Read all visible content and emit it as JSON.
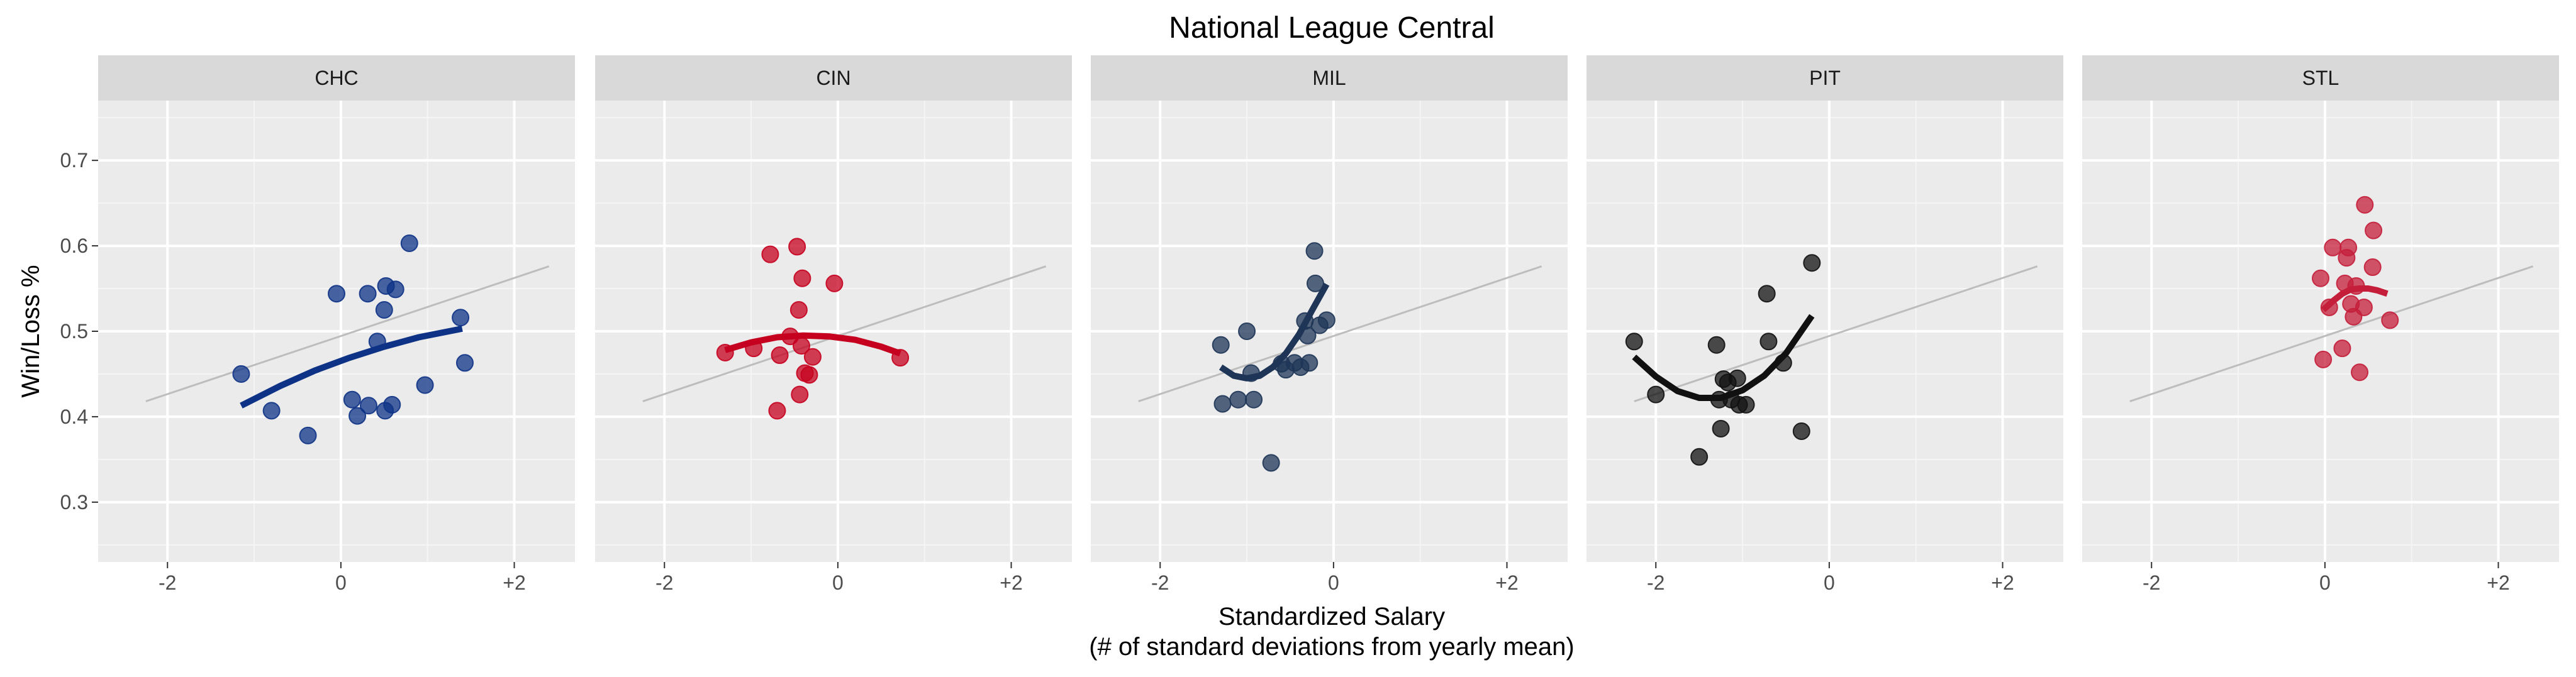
{
  "chart_data": {
    "type": "scatter",
    "title": "National League Central",
    "xlabel": "Standardized Salary",
    "xlabel_line2": "(# of standard deviations from yearly mean)",
    "ylabel": "Win/Loss %",
    "xlim": [
      -2.8,
      2.7
    ],
    "ylim": [
      0.23,
      0.77
    ],
    "x_ticks": [
      -2,
      0,
      2
    ],
    "x_tick_labels": [
      "-2",
      "0",
      "+2"
    ],
    "y_ticks": [
      0.3,
      0.4,
      0.5,
      0.6,
      0.7
    ],
    "y_tick_labels": [
      "0.3",
      "0.4",
      "0.5",
      "0.6",
      "0.7"
    ],
    "grid": true,
    "reference_line": {
      "x": [
        -2.25,
        2.4
      ],
      "y": [
        0.418,
        0.576
      ],
      "color": "#bdbdbd"
    },
    "facets": [
      {
        "label": "CHC",
        "color": "#0e3386",
        "points": [
          {
            "x": -1.15,
            "y": 0.45
          },
          {
            "x": -0.8,
            "y": 0.407
          },
          {
            "x": -0.38,
            "y": 0.378
          },
          {
            "x": -0.05,
            "y": 0.544
          },
          {
            "x": 0.13,
            "y": 0.42
          },
          {
            "x": 0.19,
            "y": 0.401
          },
          {
            "x": 0.31,
            "y": 0.544
          },
          {
            "x": 0.32,
            "y": 0.413
          },
          {
            "x": 0.42,
            "y": 0.488
          },
          {
            "x": 0.5,
            "y": 0.525
          },
          {
            "x": 0.51,
            "y": 0.407
          },
          {
            "x": 0.52,
            "y": 0.553
          },
          {
            "x": 0.59,
            "y": 0.414
          },
          {
            "x": 0.63,
            "y": 0.549
          },
          {
            "x": 0.79,
            "y": 0.603
          },
          {
            "x": 0.97,
            "y": 0.437
          },
          {
            "x": 1.38,
            "y": 0.516
          },
          {
            "x": 1.43,
            "y": 0.463
          }
        ],
        "fit": {
          "x": [
            -1.15,
            -0.7,
            -0.3,
            0.1,
            0.5,
            0.9,
            1.4
          ],
          "y": [
            0.413,
            0.436,
            0.454,
            0.469,
            0.482,
            0.493,
            0.503
          ]
        }
      },
      {
        "label": "CIN",
        "color": "#c6011f",
        "points": [
          {
            "x": -1.3,
            "y": 0.475
          },
          {
            "x": -0.97,
            "y": 0.48
          },
          {
            "x": -0.78,
            "y": 0.59
          },
          {
            "x": -0.7,
            "y": 0.407
          },
          {
            "x": -0.67,
            "y": 0.472
          },
          {
            "x": -0.55,
            "y": 0.494
          },
          {
            "x": -0.47,
            "y": 0.599
          },
          {
            "x": -0.45,
            "y": 0.525
          },
          {
            "x": -0.44,
            "y": 0.426
          },
          {
            "x": -0.42,
            "y": 0.483
          },
          {
            "x": -0.41,
            "y": 0.562
          },
          {
            "x": -0.38,
            "y": 0.451
          },
          {
            "x": -0.33,
            "y": 0.449
          },
          {
            "x": -0.29,
            "y": 0.47
          },
          {
            "x": -0.04,
            "y": 0.556
          },
          {
            "x": 0.72,
            "y": 0.469
          }
        ],
        "fit": {
          "x": [
            -1.3,
            -1.0,
            -0.7,
            -0.4,
            -0.1,
            0.2,
            0.5,
            0.72
          ],
          "y": [
            0.478,
            0.487,
            0.493,
            0.495,
            0.494,
            0.49,
            0.482,
            0.474
          ]
        }
      },
      {
        "label": "MIL",
        "color": "#1e3557",
        "points": [
          {
            "x": -1.3,
            "y": 0.484
          },
          {
            "x": -1.28,
            "y": 0.415
          },
          {
            "x": -1.1,
            "y": 0.42
          },
          {
            "x": -1.0,
            "y": 0.5
          },
          {
            "x": -0.95,
            "y": 0.451
          },
          {
            "x": -0.92,
            "y": 0.42
          },
          {
            "x": -0.72,
            "y": 0.346
          },
          {
            "x": -0.6,
            "y": 0.462
          },
          {
            "x": -0.55,
            "y": 0.455
          },
          {
            "x": -0.45,
            "y": 0.463
          },
          {
            "x": -0.38,
            "y": 0.458
          },
          {
            "x": -0.33,
            "y": 0.512
          },
          {
            "x": -0.3,
            "y": 0.495
          },
          {
            "x": -0.28,
            "y": 0.463
          },
          {
            "x": -0.22,
            "y": 0.594
          },
          {
            "x": -0.21,
            "y": 0.556
          },
          {
            "x": -0.16,
            "y": 0.507
          },
          {
            "x": -0.08,
            "y": 0.513
          }
        ],
        "fit": {
          "x": [
            -1.3,
            -1.15,
            -1.0,
            -0.85,
            -0.7,
            -0.55,
            -0.4,
            -0.25,
            -0.08
          ],
          "y": [
            0.458,
            0.448,
            0.445,
            0.448,
            0.458,
            0.474,
            0.496,
            0.524,
            0.555
          ]
        }
      },
      {
        "label": "PIT",
        "color": "#111111",
        "points": [
          {
            "x": -2.25,
            "y": 0.488
          },
          {
            "x": -2.0,
            "y": 0.426
          },
          {
            "x": -1.5,
            "y": 0.353
          },
          {
            "x": -1.3,
            "y": 0.484
          },
          {
            "x": -1.27,
            "y": 0.42
          },
          {
            "x": -1.25,
            "y": 0.386
          },
          {
            "x": -1.22,
            "y": 0.444
          },
          {
            "x": -1.17,
            "y": 0.44
          },
          {
            "x": -1.13,
            "y": 0.42
          },
          {
            "x": -1.06,
            "y": 0.445
          },
          {
            "x": -1.04,
            "y": 0.414
          },
          {
            "x": -0.96,
            "y": 0.414
          },
          {
            "x": -0.72,
            "y": 0.544
          },
          {
            "x": -0.7,
            "y": 0.488
          },
          {
            "x": -0.53,
            "y": 0.463
          },
          {
            "x": -0.32,
            "y": 0.383
          },
          {
            "x": -0.2,
            "y": 0.58
          }
        ],
        "fit": {
          "x": [
            -2.25,
            -2.0,
            -1.75,
            -1.5,
            -1.25,
            -1.0,
            -0.75,
            -0.5,
            -0.2
          ],
          "y": [
            0.47,
            0.447,
            0.43,
            0.422,
            0.422,
            0.431,
            0.448,
            0.474,
            0.518
          ]
        }
      },
      {
        "label": "STL",
        "color": "#c41e3a",
        "points": [
          {
            "x": -0.05,
            "y": 0.562
          },
          {
            "x": -0.02,
            "y": 0.467
          },
          {
            "x": 0.05,
            "y": 0.528
          },
          {
            "x": 0.09,
            "y": 0.598
          },
          {
            "x": 0.2,
            "y": 0.48
          },
          {
            "x": 0.23,
            "y": 0.556
          },
          {
            "x": 0.25,
            "y": 0.586
          },
          {
            "x": 0.27,
            "y": 0.598
          },
          {
            "x": 0.3,
            "y": 0.532
          },
          {
            "x": 0.33,
            "y": 0.517
          },
          {
            "x": 0.36,
            "y": 0.553
          },
          {
            "x": 0.4,
            "y": 0.452
          },
          {
            "x": 0.45,
            "y": 0.528
          },
          {
            "x": 0.46,
            "y": 0.648
          },
          {
            "x": 0.55,
            "y": 0.575
          },
          {
            "x": 0.56,
            "y": 0.618
          },
          {
            "x": 0.75,
            "y": 0.513
          }
        ],
        "fit": {
          "x": [
            -0.02,
            0.1,
            0.2,
            0.3,
            0.4,
            0.5,
            0.6,
            0.72
          ],
          "y": [
            0.525,
            0.536,
            0.544,
            0.549,
            0.55,
            0.55,
            0.548,
            0.544
          ]
        }
      }
    ]
  }
}
